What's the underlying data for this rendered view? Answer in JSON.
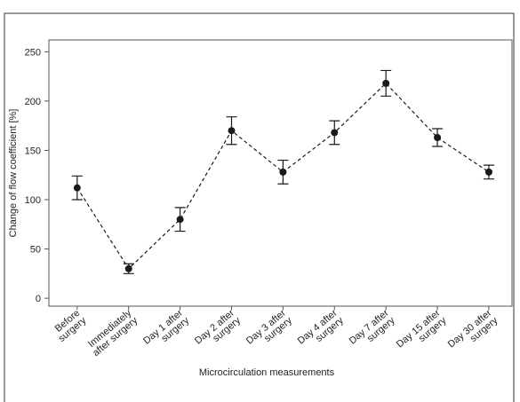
{
  "chart_data": {
    "type": "errorbar-line",
    "ylabel": "Change of flow coefficient [%]",
    "xlabel": "Microcirculation measurements",
    "categories": [
      [
        "Before",
        "surgery"
      ],
      [
        "Immediately",
        "after surgery"
      ],
      [
        "Day 1 after",
        "surgery"
      ],
      [
        "Day 2 after",
        "surgery"
      ],
      [
        "Day 3 after",
        "surgery"
      ],
      [
        "Day 4 after",
        "surgery"
      ],
      [
        "Day 7 after",
        "surgery"
      ],
      [
        "Day 15 after",
        "surgery"
      ],
      [
        "Day 30 after",
        "surgery"
      ]
    ],
    "values": [
      112,
      30,
      80,
      170,
      128,
      168,
      218,
      163,
      128
    ],
    "errors": [
      12,
      5,
      12,
      14,
      12,
      12,
      13,
      9,
      7
    ],
    "color": "#1a1a1a",
    "ylim": [
      -8,
      262
    ],
    "yticks": [
      0,
      50,
      100,
      150,
      200,
      250
    ]
  }
}
